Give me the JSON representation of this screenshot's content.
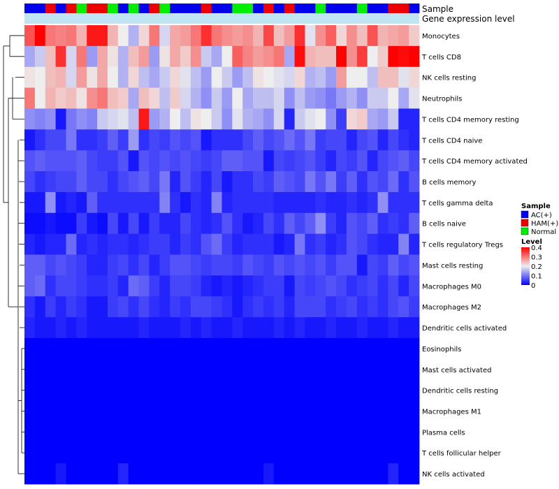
{
  "chart_data": {
    "type": "heatmap",
    "title": "",
    "annotation_rows": [
      "Sample",
      "Gene expression level"
    ],
    "rows": [
      "Monocytes",
      "T cells CD8",
      "NK cells resting",
      "Neutrophils",
      "T cells CD4 memory resting",
      "T cells CD4 naive",
      "T cells CD4 memory activated",
      "B cells memory",
      "T cells gamma delta",
      "B cells naive",
      "T cells regulatory  Tregs",
      "Mast cells resting",
      "Macrophages M0",
      "Macrophages M2",
      "Dendritic cells activated",
      "Eosinophils",
      "Mast cells activated",
      "Dendritic cells resting",
      "Macrophages M1",
      "Plasma cells",
      "T cells follicular helper",
      "NK cells activated"
    ],
    "sample_groups": [
      "AC",
      "AC",
      "HAM",
      "AC",
      "HAM",
      "Normal",
      "HAM",
      "HAM",
      "Normal",
      "AC",
      "Normal",
      "AC",
      "HAM",
      "Normal",
      "AC",
      "AC",
      "AC",
      "HAM",
      "AC",
      "AC",
      "Normal",
      "Normal",
      "AC",
      "HAM",
      "AC",
      "HAM",
      "AC",
      "AC",
      "Normal",
      "AC",
      "AC",
      "AC",
      "Normal",
      "AC",
      "AC",
      "HAM",
      "HAM",
      "AC"
    ],
    "values": [
      [
        0.33,
        0.4,
        0.3,
        0.29,
        0.3,
        0.25,
        0.38,
        0.38,
        0.25,
        0.2,
        0.15,
        0.22,
        0.3,
        0.18,
        0.26,
        0.27,
        0.3,
        0.36,
        0.3,
        0.28,
        0.27,
        0.28,
        0.25,
        0.34,
        0.24,
        0.27,
        0.36,
        0.19,
        0.28,
        0.32,
        0.22,
        0.28,
        0.24,
        0.33,
        0.25,
        0.26,
        0.27,
        0.23
      ],
      [
        0.14,
        0.17,
        0.24,
        0.36,
        0.18,
        0.3,
        0.13,
        0.26,
        0.21,
        0.15,
        0.24,
        0.27,
        0.13,
        0.21,
        0.26,
        0.23,
        0.28,
        0.17,
        0.14,
        0.2,
        0.32,
        0.29,
        0.27,
        0.28,
        0.3,
        0.14,
        0.39,
        0.25,
        0.24,
        0.24,
        0.4,
        0.28,
        0.35,
        0.2,
        0.23,
        0.4,
        0.39,
        0.4
      ],
      [
        0.21,
        0.2,
        0.24,
        0.25,
        0.18,
        0.27,
        0.21,
        0.26,
        0.2,
        0.15,
        0.22,
        0.16,
        0.14,
        0.17,
        0.22,
        0.19,
        0.16,
        0.13,
        0.2,
        0.17,
        0.13,
        0.16,
        0.21,
        0.2,
        0.19,
        0.18,
        0.22,
        0.15,
        0.16,
        0.13,
        0.27,
        0.2,
        0.2,
        0.16,
        0.24,
        0.24,
        0.19,
        0.22
      ],
      [
        0.3,
        0.2,
        0.25,
        0.23,
        0.24,
        0.21,
        0.28,
        0.3,
        0.24,
        0.23,
        0.14,
        0.24,
        0.22,
        0.16,
        0.23,
        0.18,
        0.15,
        0.12,
        0.17,
        0.13,
        0.2,
        0.14,
        0.16,
        0.16,
        0.18,
        0.12,
        0.16,
        0.13,
        0.12,
        0.1,
        0.13,
        0.15,
        0.12,
        0.17,
        0.17,
        0.2,
        0.14,
        0.19
      ],
      [
        0.12,
        0.11,
        0.12,
        0.02,
        0.1,
        0.12,
        0.11,
        0.17,
        0.18,
        0.19,
        0.16,
        0.38,
        0.13,
        0.15,
        0.2,
        0.16,
        0.21,
        0.2,
        0.17,
        0.12,
        0.19,
        0.15,
        0.14,
        0.12,
        0.18,
        0.03,
        0.17,
        0.19,
        0.2,
        0.12,
        0.05,
        0.22,
        0.23,
        0.14,
        0.13,
        0.17,
        0.03,
        0.03
      ],
      [
        0.02,
        0.04,
        0.06,
        0.06,
        0.1,
        0.04,
        0.04,
        0.05,
        0.08,
        0.05,
        0.13,
        0.04,
        0.06,
        0.05,
        0.07,
        0.06,
        0.07,
        0.02,
        0.04,
        0.04,
        0.04,
        0.06,
        0.08,
        0.06,
        0.07,
        0.09,
        0.07,
        0.1,
        0.05,
        0.06,
        0.06,
        0.03,
        0.06,
        0.07,
        0.03,
        0.06,
        0.04,
        0.03
      ],
      [
        0.07,
        0.08,
        0.07,
        0.07,
        0.07,
        0.08,
        0.06,
        0.05,
        0.05,
        0.07,
        0.02,
        0.07,
        0.06,
        0.07,
        0.06,
        0.07,
        0.06,
        0.05,
        0.06,
        0.08,
        0.08,
        0.07,
        0.07,
        0.02,
        0.06,
        0.05,
        0.06,
        0.07,
        0.05,
        0.03,
        0.06,
        0.05,
        0.07,
        0.03,
        0.06,
        0.07,
        0.08,
        0.06
      ],
      [
        0.06,
        0.04,
        0.05,
        0.06,
        0.06,
        0.08,
        0.06,
        0.06,
        0.04,
        0.06,
        0.07,
        0.08,
        0.06,
        0.1,
        0.03,
        0.07,
        0.05,
        0.03,
        0.06,
        0.02,
        0.04,
        0.04,
        0.06,
        0.05,
        0.08,
        0.07,
        0.06,
        0.1,
        0.07,
        0.1,
        0.05,
        0.08,
        0.04,
        0.07,
        0.06,
        0.09,
        0.04,
        0.07
      ],
      [
        0.02,
        0.02,
        0.12,
        0.02,
        0.03,
        0.02,
        0.08,
        0.04,
        0.04,
        0.04,
        0.04,
        0.04,
        0.04,
        0.11,
        0.04,
        0.02,
        0.04,
        0.03,
        0.11,
        0.03,
        0.04,
        0.04,
        0.04,
        0.04,
        0.03,
        0.03,
        0.03,
        0.03,
        0.04,
        0.03,
        0.03,
        0.04,
        0.03,
        0.04,
        0.12,
        0.04,
        0.04,
        0.04
      ],
      [
        0.01,
        0.01,
        0.02,
        0.01,
        0.01,
        0.05,
        0.02,
        0.01,
        0.06,
        0.02,
        0.06,
        0.02,
        0.05,
        0.03,
        0.03,
        0.06,
        0.04,
        0.03,
        0.04,
        0.07,
        0.04,
        0.02,
        0.03,
        0.06,
        0.04,
        0.08,
        0.06,
        0.08,
        0.12,
        0.05,
        0.03,
        0.07,
        0.06,
        0.08,
        0.04,
        0.05,
        0.04,
        0.08
      ],
      [
        0.03,
        0.02,
        0.03,
        0.03,
        0.09,
        0.03,
        0.04,
        0.03,
        0.04,
        0.04,
        0.03,
        0.04,
        0.05,
        0.05,
        0.03,
        0.05,
        0.04,
        0.07,
        0.09,
        0.05,
        0.03,
        0.04,
        0.04,
        0.04,
        0.02,
        0.03,
        0.1,
        0.04,
        0.05,
        0.03,
        0.04,
        0.07,
        0.06,
        0.04,
        0.03,
        0.03,
        0.11,
        0.03
      ],
      [
        0.08,
        0.08,
        0.06,
        0.07,
        0.06,
        0.05,
        0.03,
        0.03,
        0.05,
        0.06,
        0.04,
        0.06,
        0.03,
        0.05,
        0.07,
        0.07,
        0.06,
        0.05,
        0.06,
        0.06,
        0.05,
        0.07,
        0.06,
        0.05,
        0.07,
        0.06,
        0.07,
        0.06,
        0.07,
        0.05,
        0.07,
        0.07,
        0.02,
        0.06,
        0.05,
        0.08,
        0.06,
        0.07
      ],
      [
        0.08,
        0.09,
        0.04,
        0.06,
        0.06,
        0.05,
        0.04,
        0.04,
        0.05,
        0.03,
        0.09,
        0.08,
        0.05,
        0.03,
        0.06,
        0.06,
        0.05,
        0.03,
        0.02,
        0.03,
        0.02,
        0.03,
        0.04,
        0.05,
        0.05,
        0.02,
        0.06,
        0.05,
        0.06,
        0.07,
        0.06,
        0.04,
        0.05,
        0.06,
        0.04,
        0.06,
        0.03,
        0.06
      ],
      [
        0.04,
        0.02,
        0.05,
        0.03,
        0.05,
        0.04,
        0.02,
        0.02,
        0.05,
        0.06,
        0.04,
        0.06,
        0.04,
        0.03,
        0.05,
        0.04,
        0.06,
        0.06,
        0.05,
        0.04,
        0.02,
        0.04,
        0.05,
        0.04,
        0.05,
        0.03,
        0.06,
        0.06,
        0.06,
        0.04,
        0.05,
        0.06,
        0.04,
        0.05,
        0.04,
        0.06,
        0.07,
        0.05
      ],
      [
        0.03,
        0.02,
        0.02,
        0.03,
        0.02,
        0.03,
        0.02,
        0.02,
        0.02,
        0.02,
        0.02,
        0.03,
        0.02,
        0.02,
        0.02,
        0.03,
        0.02,
        0.03,
        0.02,
        0.02,
        0.03,
        0.02,
        0.02,
        0.02,
        0.03,
        0.02,
        0.03,
        0.02,
        0.02,
        0.03,
        0.02,
        0.02,
        0.03,
        0.02,
        0.02,
        0.03,
        0.02,
        0.02
      ],
      [
        0,
        0,
        0,
        0,
        0,
        0,
        0,
        0,
        0,
        0,
        0,
        0,
        0,
        0,
        0,
        0,
        0,
        0,
        0,
        0,
        0,
        0,
        0,
        0,
        0,
        0,
        0,
        0,
        0,
        0,
        0,
        0,
        0,
        0,
        0,
        0,
        0,
        0
      ],
      [
        0,
        0,
        0,
        0,
        0,
        0,
        0,
        0,
        0,
        0,
        0,
        0,
        0,
        0,
        0,
        0,
        0,
        0,
        0,
        0,
        0,
        0,
        0,
        0,
        0,
        0,
        0,
        0,
        0,
        0,
        0,
        0,
        0,
        0,
        0,
        0,
        0,
        0
      ],
      [
        0,
        0,
        0,
        0,
        0,
        0,
        0,
        0,
        0,
        0,
        0,
        0,
        0,
        0,
        0,
        0,
        0,
        0,
        0,
        0,
        0,
        0,
        0,
        0,
        0,
        0,
        0,
        0,
        0,
        0,
        0,
        0,
        0,
        0,
        0,
        0,
        0,
        0
      ],
      [
        0,
        0,
        0,
        0,
        0,
        0,
        0,
        0,
        0,
        0,
        0,
        0,
        0,
        0,
        0,
        0,
        0,
        0,
        0,
        0,
        0,
        0,
        0,
        0,
        0,
        0,
        0,
        0,
        0,
        0,
        0,
        0,
        0,
        0,
        0,
        0,
        0,
        0
      ],
      [
        0,
        0,
        0,
        0,
        0,
        0,
        0,
        0,
        0,
        0,
        0,
        0,
        0,
        0,
        0,
        0,
        0,
        0,
        0,
        0,
        0,
        0,
        0,
        0,
        0,
        0,
        0,
        0,
        0,
        0,
        0,
        0,
        0,
        0,
        0,
        0,
        0,
        0
      ],
      [
        0,
        0,
        0,
        0,
        0,
        0,
        0,
        0,
        0,
        0,
        0,
        0,
        0,
        0,
        0,
        0,
        0,
        0,
        0,
        0,
        0,
        0,
        0,
        0,
        0,
        0,
        0,
        0,
        0,
        0,
        0,
        0,
        0,
        0,
        0,
        0,
        0,
        0
      ],
      [
        0,
        0,
        0,
        0.02,
        0,
        0,
        0,
        0,
        0,
        0.03,
        0,
        0,
        0,
        0,
        0,
        0,
        0,
        0,
        0,
        0,
        0,
        0,
        0,
        0.02,
        0,
        0,
        0,
        0,
        0,
        0,
        0,
        0,
        0,
        0,
        0,
        0.03,
        0,
        0
      ]
    ],
    "legend_sample": {
      "title": "Sample",
      "items": [
        {
          "label": "AC(+)",
          "color": "#0000ee"
        },
        {
          "label": "HAM(+)",
          "color": "#ee0000"
        },
        {
          "label": "Normal",
          "color": "#00ee00"
        }
      ]
    },
    "legend_level": {
      "title": "Level",
      "ticks": [
        "0.4",
        "0.3",
        "0.2",
        "0.1",
        "0"
      ],
      "tick_values": [
        0.4,
        0.3,
        0.2,
        0.1,
        0
      ]
    },
    "color_scale": {
      "min": 0,
      "mid": 0.2,
      "max": 0.4,
      "low": "#0000ff",
      "midcolor": "#eeeeee",
      "high": "#ff0000"
    },
    "group_colors": {
      "AC": "#0000ee",
      "HAM": "#ee0000",
      "Normal": "#00ee00"
    },
    "gene_expression_color": "#bfe5f5",
    "dendrogram_color": "#000000"
  }
}
